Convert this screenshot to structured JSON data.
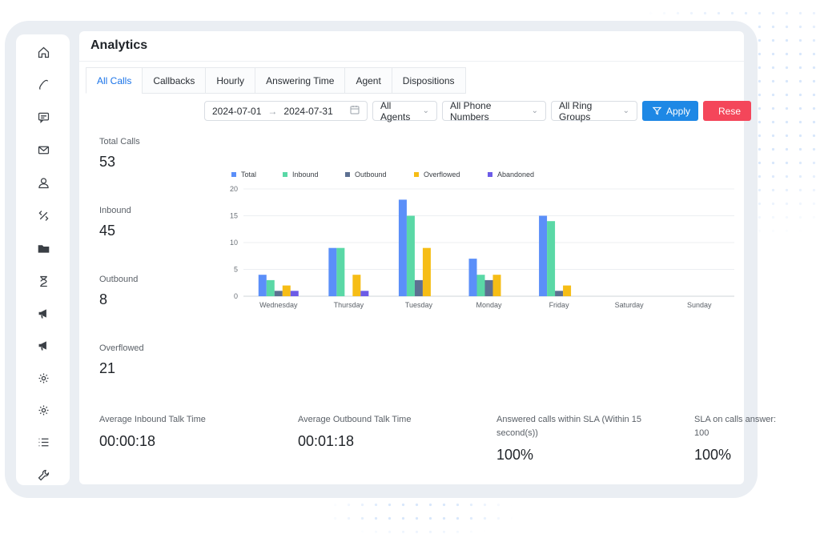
{
  "page_title": "Analytics",
  "tabs": [
    {
      "label": "All Calls",
      "active": true
    },
    {
      "label": "Callbacks",
      "active": false
    },
    {
      "label": "Hourly",
      "active": false
    },
    {
      "label": "Answering Time",
      "active": false
    },
    {
      "label": "Agent",
      "active": false
    },
    {
      "label": "Dispositions",
      "active": false
    }
  ],
  "filters": {
    "date_start": "2024-07-01",
    "date_end": "2024-07-31",
    "agents": "All Agents",
    "phone_numbers": "All Phone Numbers",
    "ring_groups": "All Ring Groups",
    "apply_label": "Apply",
    "reset_label": "Rese"
  },
  "sidebar_icons": [
    "home-icon",
    "phone-icon",
    "message-icon",
    "mail-icon",
    "user-icon",
    "tools-icon",
    "folder-icon",
    "hourglass-icon",
    "megaphone-icon",
    "campaign-icon",
    "settings-icon",
    "gear-icon",
    "list-icon",
    "wrench-icon"
  ],
  "stats": [
    {
      "label": "Total Calls",
      "value": "53"
    },
    {
      "label": "Inbound",
      "value": "45"
    },
    {
      "label": "Outbound",
      "value": "8"
    },
    {
      "label": "Overflowed",
      "value": "21"
    }
  ],
  "bottom_metrics": [
    {
      "label": "Average Inbound Talk Time",
      "value": "00:00:18"
    },
    {
      "label": "Average Outbound Talk Time",
      "value": "00:01:18"
    },
    {
      "label": "Answered calls within SLA (Within 15 second(s))",
      "value": "100%"
    },
    {
      "label": "SLA on calls answer: 100",
      "value": "100%"
    }
  ],
  "colors": {
    "accent": "#1a73e8",
    "apply": "#1e88e5",
    "reset": "#f4465a",
    "total": "#5b8ff9",
    "inbound": "#5ad8a6",
    "outbound": "#5d7092",
    "overflowed": "#f6bd16",
    "abandoned": "#6c5ce7"
  },
  "chart_data": {
    "type": "bar",
    "categories": [
      "Wednesday",
      "Thursday",
      "Tuesday",
      "Monday",
      "Friday",
      "Saturday",
      "Sunday"
    ],
    "series": [
      {
        "name": "Total",
        "values": [
          4,
          9,
          18,
          7,
          15,
          0,
          0
        ]
      },
      {
        "name": "Inbound",
        "values": [
          3,
          9,
          15,
          4,
          14,
          0,
          0
        ]
      },
      {
        "name": "Outbound",
        "values": [
          1,
          0,
          3,
          3,
          1,
          0,
          0
        ]
      },
      {
        "name": "Overflowed",
        "values": [
          2,
          4,
          9,
          4,
          2,
          0,
          0
        ]
      },
      {
        "name": "Abandoned",
        "values": [
          1,
          1,
          0,
          0,
          0,
          0,
          0
        ]
      }
    ],
    "yticks": [
      0,
      5,
      10,
      15,
      20
    ],
    "ylim": [
      0,
      20
    ],
    "grid": true,
    "legend": "top-left"
  }
}
